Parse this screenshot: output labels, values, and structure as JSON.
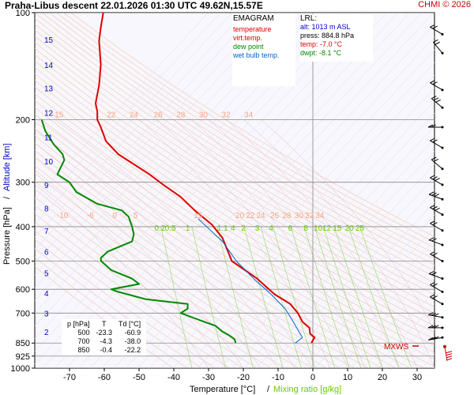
{
  "header": {
    "title": "Praha-Libus   descent   22.01.2026 01:30 UTC   49.62N,15.57E",
    "credit": "CHMI © 2026"
  },
  "legend": {
    "heading": "EMAGRAM",
    "items": [
      {
        "label": "temperature",
        "color": "#dd0000"
      },
      {
        "label": "virt.temp.",
        "color": "#dd0000"
      },
      {
        "label": "dew point",
        "color": "#008800"
      },
      {
        "label": "wet bulb temp.",
        "color": "#0066cc"
      }
    ]
  },
  "lrl": {
    "heading": "LRL:",
    "alt": "alt: 1013 m ASL",
    "press": "press: 884.8 hPa",
    "temp": "temp: -7.0 °C",
    "dwpt": "dwpt: -8.1 °C"
  },
  "table": {
    "headers": [
      "p [hPa]",
      "T",
      "Td [°C]"
    ],
    "rows": [
      [
        "500",
        "-23.3",
        "-60.9"
      ],
      [
        "700",
        "-4.3",
        "-38.0"
      ],
      [
        "850",
        "-0.4",
        "-22.2"
      ]
    ]
  },
  "mxws_label": "MXWS",
  "axes": {
    "xlabel": "Temperature [°C]",
    "xlabel_sep": "/",
    "xlabel2": "Mixing ratio [g/kg]",
    "ylabel": "Pressure [hPa]",
    "ylabel_sep": "/",
    "ylabel2": "Altitude [km]"
  },
  "chart_data": {
    "type": "line",
    "title": "",
    "xlim": [
      -80,
      35
    ],
    "ylim": [
      1000,
      100
    ],
    "y_scale": "log",
    "x_ticks": [
      -70,
      -60,
      -50,
      -40,
      -30,
      -20,
      -10,
      0,
      10,
      20,
      30
    ],
    "y_ticks": [
      100,
      200,
      300,
      400,
      500,
      600,
      700,
      850,
      925,
      1000
    ],
    "altitude_ticks_km": [
      {
        "km": 2,
        "p": 790
      },
      {
        "km": 3,
        "p": 700
      },
      {
        "km": 4,
        "p": 615
      },
      {
        "km": 5,
        "p": 540
      },
      {
        "km": 6,
        "p": 470
      },
      {
        "km": 7,
        "p": 410
      },
      {
        "km": 8,
        "p": 355
      },
      {
        "km": 9,
        "p": 305
      },
      {
        "km": 10,
        "p": 262
      },
      {
        "km": 11,
        "p": 224
      },
      {
        "km": 12,
        "p": 191
      },
      {
        "km": 13,
        "p": 163
      },
      {
        "km": 14,
        "p": 140
      },
      {
        "km": 15,
        "p": 119
      }
    ],
    "mixing_ratio_labels": [
      "0.2",
      "0.5",
      "1",
      "1.1",
      "4",
      "2",
      "3",
      "4",
      "6",
      "8",
      "10",
      "12",
      "15",
      "20",
      "25"
    ],
    "dry_adiabat_labels_upper": [
      "15",
      "22",
      "24",
      "26",
      "28",
      "30",
      "32",
      "34"
    ],
    "dry_adiabat_labels_lower": [
      "-10",
      "-6",
      "0",
      "5",
      "15",
      "20",
      "22",
      "24",
      "26",
      "28",
      "30",
      "32",
      "34"
    ],
    "series": [
      {
        "name": "temperature",
        "color": "#dd0000",
        "points": [
          [
            -60.3,
            100
          ],
          [
            -61,
            110
          ],
          [
            -61.5,
            120
          ],
          [
            -61,
            140
          ],
          [
            -61.5,
            160
          ],
          [
            -62.5,
            180
          ],
          [
            -62,
            190
          ],
          [
            -62,
            200
          ],
          [
            -61,
            210
          ],
          [
            -59.5,
            230
          ],
          [
            -56,
            250
          ],
          [
            -52,
            265
          ],
          [
            -47,
            285
          ],
          [
            -43,
            305
          ],
          [
            -38,
            330
          ],
          [
            -34,
            360
          ],
          [
            -29,
            395
          ],
          [
            -26,
            430
          ],
          [
            -23.3,
            500
          ],
          [
            -16,
            560
          ],
          [
            -11,
            620
          ],
          [
            -6.5,
            660
          ],
          [
            -4.3,
            700
          ],
          [
            -3,
            740
          ],
          [
            -1,
            770
          ],
          [
            -0.8,
            800
          ],
          [
            0.5,
            820
          ],
          [
            0,
            835
          ],
          [
            -0.4,
            850
          ]
        ]
      },
      {
        "name": "dew point",
        "color": "#008800",
        "points": [
          [
            -78,
            200
          ],
          [
            -77,
            215
          ],
          [
            -74.5,
            235
          ],
          [
            -72,
            250
          ],
          [
            -71.5,
            260
          ],
          [
            -73.5,
            285
          ],
          [
            -70,
            300
          ],
          [
            -68,
            320
          ],
          [
            -62,
            345
          ],
          [
            -55,
            360
          ],
          [
            -53,
            375
          ],
          [
            -52,
            400
          ],
          [
            -51.5,
            420
          ],
          [
            -52,
            440
          ],
          [
            -59,
            470
          ],
          [
            -61,
            490
          ],
          [
            -60.9,
            500
          ],
          [
            -58,
            530
          ],
          [
            -52,
            560
          ],
          [
            -50,
            580
          ],
          [
            -56,
            595
          ],
          [
            -58,
            600
          ],
          [
            -56,
            610
          ],
          [
            -48,
            640
          ],
          [
            -36,
            660
          ],
          [
            -36,
            680
          ],
          [
            -38,
            700
          ],
          [
            -33,
            730
          ],
          [
            -28,
            760
          ],
          [
            -26,
            790
          ],
          [
            -24,
            810
          ],
          [
            -22.5,
            830
          ],
          [
            -22.2,
            850
          ]
        ]
      },
      {
        "name": "wet bulb temp.",
        "color": "#0066cc",
        "points": [
          [
            -33,
            380
          ],
          [
            -26,
            440
          ],
          [
            -22,
            500
          ],
          [
            -17,
            560
          ],
          [
            -12,
            620
          ],
          [
            -8,
            680
          ],
          [
            -6,
            730
          ],
          [
            -4,
            790
          ],
          [
            -3,
            820
          ],
          [
            -5,
            850
          ]
        ]
      }
    ]
  }
}
